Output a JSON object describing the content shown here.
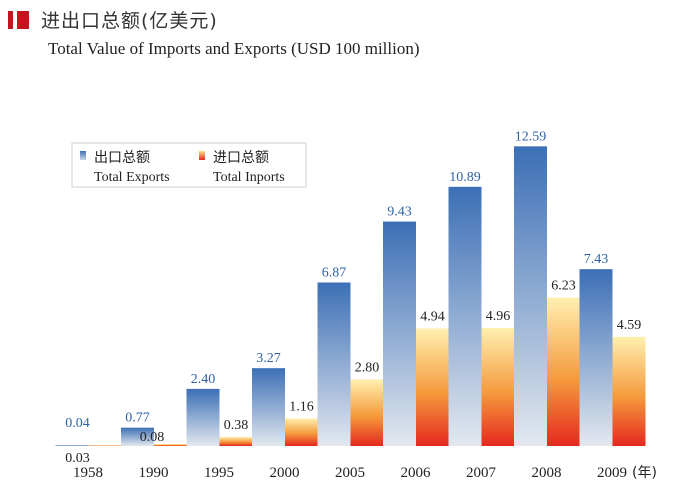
{
  "title_cn": "进出口总额(亿美元)",
  "title_en": "Total Value of Imports and Exports (USD 100 million)",
  "chart_data": {
    "type": "bar",
    "categories": [
      "1958",
      "1990",
      "1995",
      "2000",
      "2005",
      "2006",
      "2007",
      "2008",
      "2009"
    ],
    "x_unit_suffix": "(年)",
    "series": [
      {
        "name_cn": "出口总额",
        "name": "Total Exports",
        "values": [
          0.04,
          0.77,
          2.4,
          3.27,
          6.87,
          9.43,
          10.89,
          12.59,
          7.43
        ],
        "labels": [
          "0.04",
          "0.77",
          "2.40",
          "3.27",
          "6.87",
          "9.43",
          "10.89",
          "12.59",
          "7.43"
        ]
      },
      {
        "name_cn": "进口总额",
        "name": "Total Inports",
        "values": [
          0.03,
          0.08,
          0.38,
          1.16,
          2.8,
          4.94,
          4.96,
          6.23,
          4.59
        ],
        "labels": [
          "0.03",
          "0.08",
          "0.38",
          "1.16",
          "2.80",
          "4.94",
          "4.96",
          "6.23",
          "4.59"
        ]
      }
    ],
    "ylim": [
      0,
      13
    ],
    "grid": false,
    "legend_position": "top-left",
    "colors": {
      "exports_top": "#3c6fb6",
      "exports_bottom": "#e3e8ef",
      "imports_top": "#fff0b0",
      "imports_bottom": "#e5281e"
    }
  }
}
